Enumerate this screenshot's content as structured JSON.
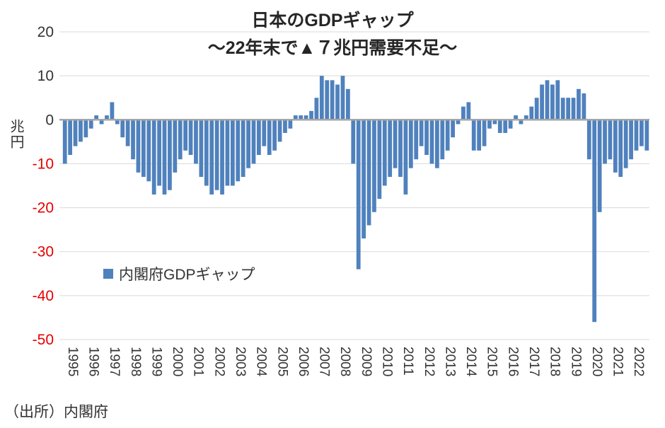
{
  "title": {
    "line1": "日本のGDPギャップ",
    "line2": "～22年末で▲７兆円需要不足～"
  },
  "y_axis": {
    "label": "兆円",
    "ticks": [
      20,
      10,
      0,
      -10,
      -20,
      -30,
      -40,
      -50
    ],
    "min": -50,
    "max": 20
  },
  "legend": {
    "label": "内閣府GDPギャップ"
  },
  "source": "（出所）内閣府",
  "colors": {
    "bar": "#4f81bd",
    "grid": "#d9d9d9",
    "zero_line": "#a6a6a6",
    "tick_negative": "#e60000",
    "tick_positive": "#333333"
  },
  "chart_data": {
    "type": "bar",
    "title": "日本のGDPギャップ ～22年末で▲７兆円需要不足～",
    "xlabel": "",
    "ylabel": "兆円",
    "ylim": [
      -50,
      20
    ],
    "x_frequency": "quarterly",
    "series_name": "内閣府GDPギャップ",
    "categories": [
      "1995",
      "1996",
      "1997",
      "1998",
      "1999",
      "2000",
      "2001",
      "2002",
      "2003",
      "2004",
      "2005",
      "2006",
      "2007",
      "2008",
      "2009",
      "2010",
      "2011",
      "2012",
      "2013",
      "2014",
      "2015",
      "2016",
      "2017",
      "2018",
      "2019",
      "2020",
      "2021",
      "2022"
    ],
    "values": [
      -10,
      -8,
      -6,
      -5,
      -4,
      -2,
      1,
      -1,
      1,
      4,
      -1,
      -4,
      -6,
      -9,
      -12,
      -13,
      -14,
      -17,
      -15,
      -17,
      -16,
      -12,
      -9,
      -7,
      -8,
      -10,
      -13,
      -15,
      -17,
      -16,
      -17,
      -15,
      -15,
      -14,
      -13,
      -11,
      -10,
      -8,
      -6,
      -8,
      -7,
      -5,
      -3,
      -2,
      1,
      1,
      1,
      2,
      5,
      10,
      9,
      9,
      8,
      10,
      7,
      -10,
      -34,
      -27,
      -24,
      -21,
      -18,
      -15,
      -13,
      -11,
      -13,
      -17,
      -11,
      -9,
      -6,
      -8,
      -10,
      -11,
      -9,
      -7,
      -4,
      -1,
      3,
      4,
      -7,
      -7,
      -6,
      -2,
      -1,
      -3,
      -3,
      -2,
      1,
      -1,
      1,
      3,
      5,
      8,
      9,
      8,
      9,
      5,
      5,
      5,
      7,
      6,
      -9,
      -46,
      -21,
      -10,
      -9,
      -12,
      -13,
      -11,
      -9,
      -7,
      -6,
      -7
    ]
  }
}
